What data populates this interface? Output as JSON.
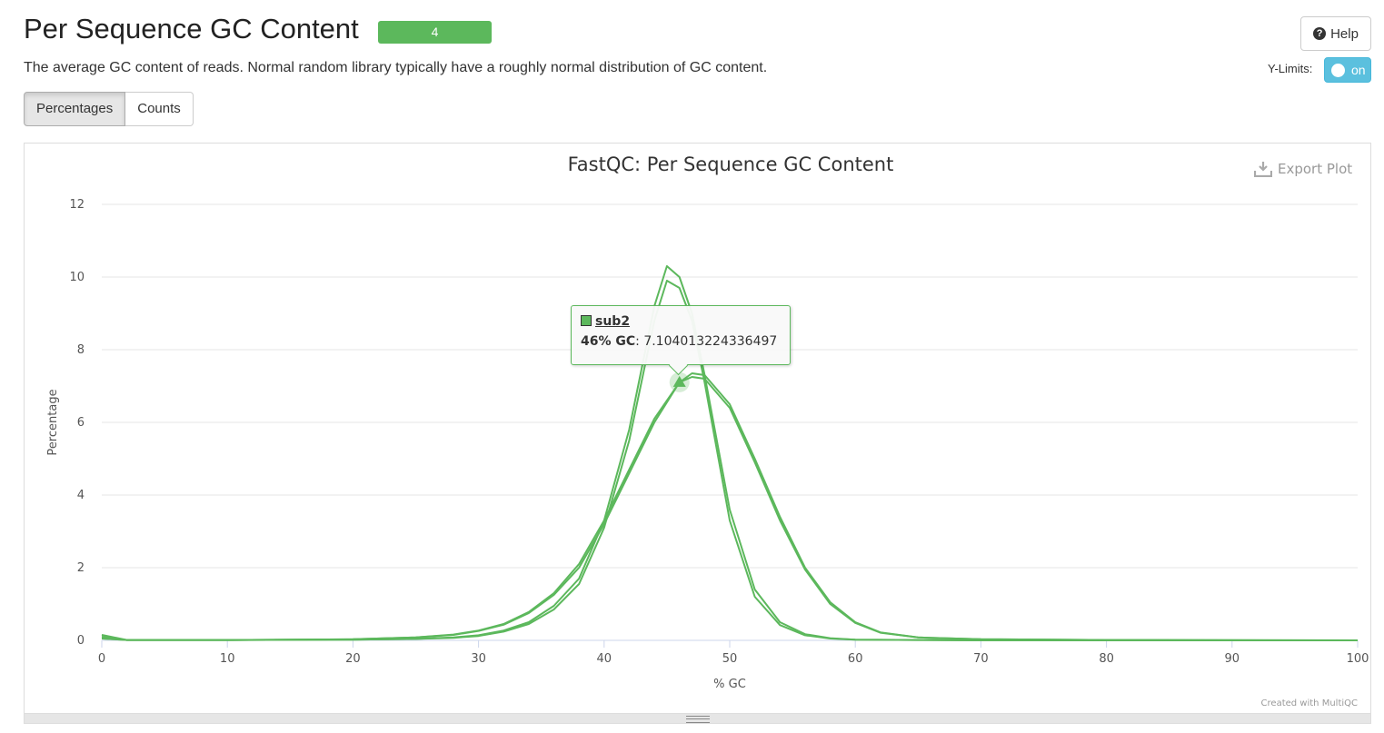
{
  "header": {
    "title": "Per Sequence GC Content",
    "badge": "4",
    "help_label": "Help",
    "description": "The average GC content of reads. Normal random library typically have a roughly normal distribution of GC content.",
    "ylimits_label": "Y-Limits:",
    "ylimits_toggle": "on"
  },
  "tabs": [
    {
      "label": "Percentages",
      "active": true
    },
    {
      "label": "Counts",
      "active": false
    }
  ],
  "plot": {
    "export_label": "Export Plot",
    "credit": "Created with MultiQC",
    "line_color": "#5cb85c"
  },
  "tooltip": {
    "series_name": "sub2",
    "x_label": "46% GC",
    "value_text": ": 7.104013224336497"
  },
  "chart_data": {
    "type": "line",
    "title": "FastQC: Per Sequence GC Content",
    "xlabel": "% GC",
    "ylabel": "Percentage",
    "xlim": [
      0,
      100
    ],
    "ylim": [
      0,
      12
    ],
    "xticks": [
      0,
      10,
      20,
      30,
      40,
      50,
      60,
      70,
      80,
      90,
      100
    ],
    "yticks": [
      0,
      2,
      4,
      6,
      8,
      10,
      12
    ],
    "grid": true,
    "series": [
      {
        "x": [
          0,
          2,
          10,
          20,
          25,
          28,
          30,
          32,
          34,
          36,
          38,
          40,
          42,
          44,
          45,
          46,
          47,
          48,
          50,
          52,
          54,
          56,
          58,
          60,
          65,
          70,
          80,
          100
        ],
        "values": [
          0.15,
          0.01,
          0.01,
          0.02,
          0.04,
          0.08,
          0.14,
          0.27,
          0.5,
          0.95,
          1.7,
          3.3,
          5.8,
          9.2,
          10.3,
          10.0,
          9.0,
          7.3,
          3.6,
          1.4,
          0.5,
          0.17,
          0.06,
          0.02,
          0.01,
          0,
          0,
          0
        ]
      },
      {
        "x": [
          0,
          2,
          10,
          20,
          25,
          28,
          30,
          32,
          34,
          36,
          38,
          40,
          42,
          44,
          45,
          46,
          47,
          48,
          50,
          52,
          54,
          56,
          58,
          60,
          65,
          70,
          80,
          100
        ],
        "values": [
          0.1,
          0.01,
          0.01,
          0.02,
          0.04,
          0.07,
          0.12,
          0.24,
          0.45,
          0.85,
          1.55,
          3.1,
          5.5,
          8.8,
          9.9,
          9.7,
          8.8,
          7.1,
          3.3,
          1.2,
          0.42,
          0.14,
          0.05,
          0.02,
          0.01,
          0,
          0,
          0
        ]
      },
      {
        "x": [
          0,
          2,
          10,
          20,
          25,
          28,
          30,
          32,
          34,
          36,
          38,
          40,
          42,
          44,
          46,
          47,
          48,
          50,
          52,
          54,
          56,
          58,
          60,
          62,
          65,
          70,
          80,
          100
        ],
        "values": [
          0.05,
          0.01,
          0.01,
          0.03,
          0.08,
          0.16,
          0.27,
          0.45,
          0.78,
          1.3,
          2.1,
          3.3,
          4.7,
          6.1,
          7.1,
          7.35,
          7.3,
          6.5,
          5.0,
          3.4,
          2.0,
          1.05,
          0.5,
          0.22,
          0.08,
          0.03,
          0.01,
          0
        ]
      },
      {
        "x": [
          0,
          2,
          10,
          20,
          25,
          28,
          30,
          32,
          34,
          36,
          38,
          40,
          42,
          44,
          46,
          47,
          48,
          50,
          52,
          54,
          56,
          58,
          60,
          62,
          65,
          70,
          80,
          100
        ],
        "values": [
          0.05,
          0.01,
          0.01,
          0.03,
          0.08,
          0.15,
          0.26,
          0.43,
          0.75,
          1.25,
          2.0,
          3.2,
          4.6,
          6.0,
          7.104,
          7.25,
          7.2,
          6.4,
          4.9,
          3.3,
          1.95,
          1.0,
          0.48,
          0.21,
          0.08,
          0.03,
          0.01,
          0
        ]
      }
    ],
    "highlight": {
      "x": 46,
      "y": 7.104013224336497
    }
  }
}
